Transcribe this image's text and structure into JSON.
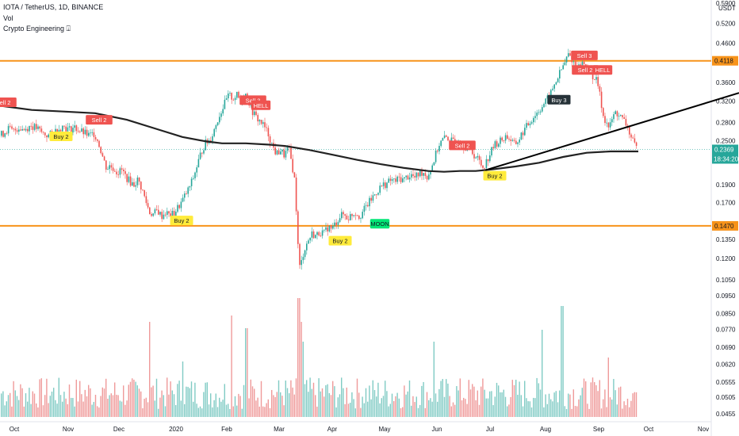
{
  "header": {
    "symbol_line": "IOTA / TetherUS, 1D, BINANCE",
    "vol_label": "Vol",
    "indicator_label": "Crypto Engineering ⍗"
  },
  "chart_data": {
    "type": "candlestick",
    "log_scale": true,
    "currency": "USDT",
    "x_labels": [
      "Oct",
      "Nov",
      "Dec",
      "2020",
      "Feb",
      "Mar",
      "Apr",
      "May",
      "Jun",
      "Jul",
      "Aug",
      "Sep",
      "Oct",
      "Nov"
    ],
    "y_ticks": [
      "0.5900",
      "0.5200",
      "0.4600",
      "0.4118",
      "0.3600",
      "0.3200",
      "0.2800",
      "0.2500",
      "0.2369",
      "0.1900",
      "0.1700",
      "0.1470",
      "0.1350",
      "0.1200",
      "0.1050",
      "0.0950",
      "0.0850",
      "0.0770",
      "0.0690",
      "0.0620",
      "0.0555",
      "0.0505",
      "0.0455"
    ],
    "y_range": [
      0.0455,
      0.59
    ],
    "last_price": "0.2369",
    "countdown": "18:34:20",
    "horizontal_levels": [
      {
        "value": 0.4118,
        "label": "0.4118",
        "color": "#f7931a"
      },
      {
        "value": 0.147,
        "label": "0.1470",
        "color": "#f7931a"
      }
    ],
    "price_path": [
      [
        0,
        0.258
      ],
      [
        6,
        0.262
      ],
      [
        12,
        0.27
      ],
      [
        18,
        0.265
      ],
      [
        25,
        0.272
      ],
      [
        32,
        0.268
      ],
      [
        40,
        0.275
      ],
      [
        48,
        0.27
      ],
      [
        55,
        0.262
      ],
      [
        62,
        0.258
      ],
      [
        68,
        0.262
      ],
      [
        75,
        0.27
      ],
      [
        82,
        0.274
      ],
      [
        88,
        0.268
      ],
      [
        95,
        0.272
      ],
      [
        102,
        0.266
      ],
      [
        108,
        0.262
      ],
      [
        114,
        0.258
      ],
      [
        120,
        0.262
      ],
      [
        124,
        0.252
      ],
      [
        128,
        0.238
      ],
      [
        132,
        0.222
      ],
      [
        136,
        0.21
      ],
      [
        140,
        0.214
      ],
      [
        145,
        0.21
      ],
      [
        150,
        0.205
      ],
      [
        155,
        0.208
      ],
      [
        160,
        0.2
      ],
      [
        165,
        0.194
      ],
      [
        170,
        0.19
      ],
      [
        175,
        0.196
      ],
      [
        180,
        0.186
      ],
      [
        185,
        0.172
      ],
      [
        190,
        0.16
      ],
      [
        195,
        0.158
      ],
      [
        200,
        0.162
      ],
      [
        205,
        0.156
      ],
      [
        210,
        0.16
      ],
      [
        215,
        0.157
      ],
      [
        220,
        0.158
      ],
      [
        225,
        0.164
      ],
      [
        230,
        0.17
      ],
      [
        235,
        0.178
      ],
      [
        240,
        0.186
      ],
      [
        245,
        0.198
      ],
      [
        250,
        0.214
      ],
      [
        255,
        0.232
      ],
      [
        260,
        0.246
      ],
      [
        265,
        0.25
      ],
      [
        270,
        0.262
      ],
      [
        275,
        0.282
      ],
      [
        280,
        0.3
      ],
      [
        285,
        0.316
      ],
      [
        290,
        0.332
      ],
      [
        295,
        0.326
      ],
      [
        300,
        0.332
      ],
      [
        305,
        0.32
      ],
      [
        310,
        0.338
      ],
      [
        315,
        0.32
      ],
      [
        320,
        0.3
      ],
      [
        325,
        0.288
      ],
      [
        330,
        0.282
      ],
      [
        335,
        0.272
      ],
      [
        340,
        0.26
      ],
      [
        345,
        0.242
      ],
      [
        350,
        0.23
      ],
      [
        355,
        0.236
      ],
      [
        360,
        0.228
      ],
      [
        365,
        0.24
      ],
      [
        370,
        0.214
      ],
      [
        373,
        0.195
      ],
      [
        376,
        0.148
      ],
      [
        378,
        0.118
      ],
      [
        380,
        0.112
      ],
      [
        383,
        0.122
      ],
      [
        386,
        0.128
      ],
      [
        390,
        0.134
      ],
      [
        395,
        0.14
      ],
      [
        400,
        0.138
      ],
      [
        405,
        0.142
      ],
      [
        410,
        0.14
      ],
      [
        415,
        0.146
      ],
      [
        420,
        0.144
      ],
      [
        425,
        0.15
      ],
      [
        430,
        0.156
      ],
      [
        435,
        0.158
      ],
      [
        440,
        0.154
      ],
      [
        445,
        0.158
      ],
      [
        450,
        0.16
      ],
      [
        455,
        0.156
      ],
      [
        460,
        0.162
      ],
      [
        465,
        0.168
      ],
      [
        470,
        0.174
      ],
      [
        475,
        0.18
      ],
      [
        480,
        0.186
      ],
      [
        485,
        0.19
      ],
      [
        490,
        0.192
      ],
      [
        495,
        0.196
      ],
      [
        500,
        0.194
      ],
      [
        505,
        0.198
      ],
      [
        510,
        0.196
      ],
      [
        515,
        0.2
      ],
      [
        520,
        0.202
      ],
      [
        525,
        0.198
      ],
      [
        530,
        0.204
      ],
      [
        535,
        0.206
      ],
      [
        540,
        0.2
      ],
      [
        545,
        0.21
      ],
      [
        550,
        0.226
      ],
      [
        555,
        0.244
      ],
      [
        560,
        0.252
      ],
      [
        565,
        0.256
      ],
      [
        570,
        0.25
      ],
      [
        575,
        0.246
      ],
      [
        580,
        0.25
      ],
      [
        585,
        0.244
      ],
      [
        590,
        0.24
      ],
      [
        595,
        0.236
      ],
      [
        600,
        0.228
      ],
      [
        605,
        0.222
      ],
      [
        610,
        0.212
      ],
      [
        615,
        0.22
      ],
      [
        620,
        0.232
      ],
      [
        625,
        0.244
      ],
      [
        630,
        0.248
      ],
      [
        635,
        0.252
      ],
      [
        640,
        0.258
      ],
      [
        645,
        0.252
      ],
      [
        650,
        0.244
      ],
      [
        655,
        0.25
      ],
      [
        660,
        0.262
      ],
      [
        665,
        0.272
      ],
      [
        670,
        0.282
      ],
      [
        675,
        0.292
      ],
      [
        680,
        0.3
      ],
      [
        685,
        0.31
      ],
      [
        690,
        0.32
      ],
      [
        695,
        0.332
      ],
      [
        700,
        0.352
      ],
      [
        705,
        0.372
      ],
      [
        710,
        0.392
      ],
      [
        715,
        0.412
      ],
      [
        718,
        0.43
      ],
      [
        722,
        0.418
      ],
      [
        726,
        0.404
      ],
      [
        730,
        0.392
      ],
      [
        735,
        0.408
      ],
      [
        740,
        0.4
      ],
      [
        745,
        0.388
      ],
      [
        750,
        0.372
      ],
      [
        755,
        0.36
      ],
      [
        758,
        0.33
      ],
      [
        762,
        0.294
      ],
      [
        766,
        0.28
      ],
      [
        770,
        0.27
      ],
      [
        774,
        0.29
      ],
      [
        778,
        0.298
      ],
      [
        782,
        0.294
      ],
      [
        786,
        0.286
      ],
      [
        790,
        0.28
      ],
      [
        794,
        0.268
      ],
      [
        798,
        0.252
      ],
      [
        802,
        0.242
      ],
      [
        805,
        0.237
      ]
    ],
    "ma_line_path": [
      [
        0,
        0.311
      ],
      [
        40,
        0.303
      ],
      [
        80,
        0.3
      ],
      [
        120,
        0.297
      ],
      [
        160,
        0.285
      ],
      [
        200,
        0.268
      ],
      [
        230,
        0.256
      ],
      [
        260,
        0.249
      ],
      [
        280,
        0.246
      ],
      [
        310,
        0.246
      ],
      [
        340,
        0.244
      ],
      [
        360,
        0.242
      ],
      [
        390,
        0.236
      ],
      [
        420,
        0.229
      ],
      [
        450,
        0.222
      ],
      [
        480,
        0.216
      ],
      [
        510,
        0.211
      ],
      [
        540,
        0.207
      ],
      [
        560,
        0.206
      ],
      [
        580,
        0.207
      ],
      [
        600,
        0.207
      ],
      [
        620,
        0.209
      ],
      [
        650,
        0.213
      ],
      [
        680,
        0.218
      ],
      [
        710,
        0.226
      ],
      [
        740,
        0.232
      ],
      [
        770,
        0.234
      ],
      [
        805,
        0.234
      ]
    ],
    "trendline": {
      "x1": 612,
      "y1": 0.208,
      "x2": 932,
      "y2": 0.337
    },
    "volume_profile": "relative",
    "signals": [
      {
        "label": "Sell 2",
        "x": 4,
        "value": 0.318,
        "kind": "sell"
      },
      {
        "label": "Sell 2",
        "x": 125,
        "value": 0.285,
        "kind": "sell"
      },
      {
        "label": "Buy 2",
        "x": 77,
        "value": 0.257,
        "kind": "buy"
      },
      {
        "label": "Sell 3",
        "x": 319,
        "value": 0.322,
        "kind": "sell"
      },
      {
        "label": "HELL",
        "x": 329,
        "value": 0.312,
        "kind": "sell"
      },
      {
        "label": "Buy 2",
        "x": 229,
        "value": 0.152,
        "kind": "buy"
      },
      {
        "label": "Buy 2",
        "x": 429,
        "value": 0.134,
        "kind": "buy"
      },
      {
        "label": "MOON",
        "x": 479,
        "value": 0.149,
        "kind": "moon"
      },
      {
        "label": "Sell 2",
        "x": 583,
        "value": 0.243,
        "kind": "sell"
      },
      {
        "label": "Buy 2",
        "x": 624,
        "value": 0.201,
        "kind": "buy"
      },
      {
        "label": "Buy 3",
        "x": 705,
        "value": 0.323,
        "kind": "buy3"
      },
      {
        "label": "Sell 3",
        "x": 737,
        "value": 0.426,
        "kind": "sell"
      },
      {
        "label": "Sell 2",
        "x": 738,
        "value": 0.389,
        "kind": "sell"
      },
      {
        "label": "HELL",
        "x": 760,
        "value": 0.389,
        "kind": "sell"
      }
    ]
  },
  "colors": {
    "up": "#26a69a",
    "down": "#ef5350",
    "vol_up": "#80cbc4",
    "vol_down": "#ef9a9a",
    "level": "#f7931a",
    "ma": "#222222",
    "trend": "#000000",
    "buy_bg": "#ffeb3b",
    "moon_bg": "#00e676",
    "buy3_bg": "#263238",
    "sell_bg": "#ef5350",
    "last_price_bg": "#26a69a"
  }
}
